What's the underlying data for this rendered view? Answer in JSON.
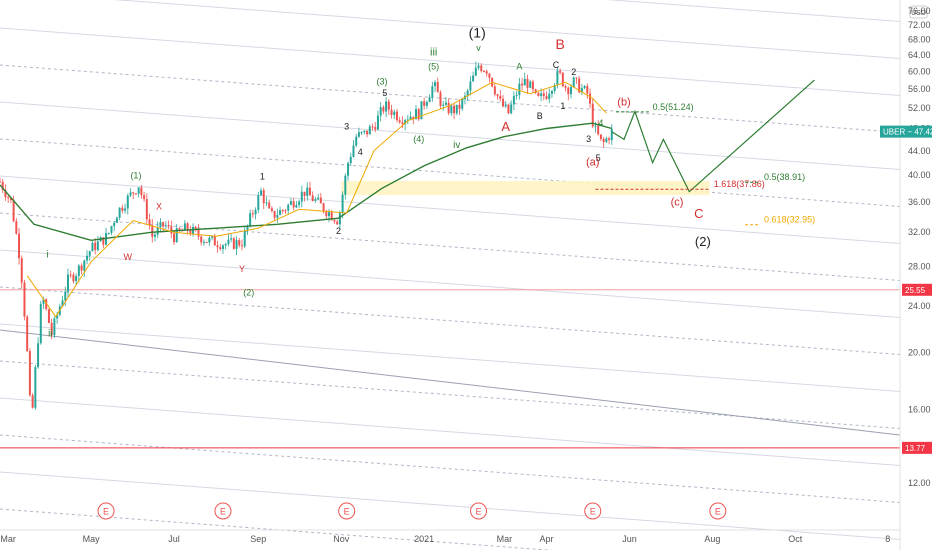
{
  "chart_data": {
    "type": "line",
    "title": "",
    "symbol": "UBER",
    "currency": "USD",
    "scale": "log",
    "ylim": [
      10.8,
      77.5
    ],
    "y_ticks": [
      "76.00",
      "72.00",
      "68.00",
      "64.00",
      "60.00",
      "56.00",
      "52.00",
      "48.00",
      "44.00",
      "40.00",
      "36.00",
      "32.00",
      "28.00",
      "24.00",
      "20.00",
      "16.00",
      "12.00"
    ],
    "x_ticks": [
      "Mar",
      "May",
      "Jul",
      "Sep",
      "Nov",
      "2021",
      "Mar",
      "Apr",
      "Jun",
      "Aug",
      "Oct",
      "8"
    ],
    "x_tick_dates": [
      "2020-03-01",
      "2020-05-01",
      "2020-07-01",
      "2020-09-01",
      "2020-11-01",
      "2021-01-01",
      "2021-03-01",
      "2021-04-01",
      "2021-06-01",
      "2021-08-01",
      "2021-10-01",
      "2021-12-08"
    ],
    "price_badges": [
      {
        "label": "UBER",
        "value": "47.42",
        "color": "#26a69a"
      },
      {
        "label": "",
        "value": "25.55",
        "color": "#f23645"
      },
      {
        "label": "",
        "value": "13.77",
        "color": "#f23645"
      }
    ],
    "horizontal_lines": [
      {
        "value": 25.55,
        "color": "#f4a09c"
      },
      {
        "value": 13.77,
        "color": "#f23645"
      }
    ],
    "fib_levels": [
      {
        "label": "0.5(51.24)",
        "value": 51.24,
        "color": "#2e7d32"
      },
      {
        "label": "1.618(37.86)",
        "value": 37.86,
        "color": "#d32f2f"
      },
      {
        "label": "0.5(38.91)",
        "value": 38.91,
        "color": "#2e7d32"
      },
      {
        "label": "0.618(32.95)",
        "value": 32.95,
        "color": "#f0a800"
      }
    ],
    "zone": {
      "from": 37.0,
      "to": 39.1,
      "color": "#fff3c0"
    },
    "earnings_marker": "E",
    "earnings_dates": [
      "2020-05-12",
      "2020-08-06",
      "2020-11-05",
      "2021-02-10",
      "2021-05-05",
      "2021-08-05"
    ],
    "price_path": [
      {
        "d": "2020-02-24",
        "v": 39.0
      },
      {
        "d": "2020-03-03",
        "v": 36.0
      },
      {
        "d": "2020-03-10",
        "v": 28.5
      },
      {
        "d": "2020-03-18",
        "v": 14.8
      },
      {
        "d": "2020-03-26",
        "v": 25.0
      },
      {
        "d": "2020-04-02",
        "v": 21.5
      },
      {
        "d": "2020-04-14",
        "v": 26.5
      },
      {
        "d": "2020-04-21",
        "v": 27.5
      },
      {
        "d": "2020-05-01",
        "v": 30.0
      },
      {
        "d": "2020-05-13",
        "v": 31.5
      },
      {
        "d": "2020-05-20",
        "v": 34.5
      },
      {
        "d": "2020-06-05",
        "v": 38.5
      },
      {
        "d": "2020-06-15",
        "v": 31.5
      },
      {
        "d": "2020-06-24",
        "v": 33.0
      },
      {
        "d": "2020-07-01",
        "v": 31.5
      },
      {
        "d": "2020-07-10",
        "v": 32.5
      },
      {
        "d": "2020-07-25",
        "v": 31.0
      },
      {
        "d": "2020-08-10",
        "v": 30.5
      },
      {
        "d": "2020-08-20",
        "v": 30.8
      },
      {
        "d": "2020-09-03",
        "v": 37.5
      },
      {
        "d": "2020-09-10",
        "v": 34.0
      },
      {
        "d": "2020-09-20",
        "v": 35.0
      },
      {
        "d": "2020-10-05",
        "v": 37.5
      },
      {
        "d": "2020-10-20",
        "v": 35.0
      },
      {
        "d": "2020-10-30",
        "v": 33.5
      },
      {
        "d": "2020-11-06",
        "v": 42.0
      },
      {
        "d": "2020-11-12",
        "v": 46.5
      },
      {
        "d": "2020-11-18",
        "v": 47.0
      },
      {
        "d": "2020-11-25",
        "v": 48.5
      },
      {
        "d": "2020-12-03",
        "v": 52.5
      },
      {
        "d": "2020-12-15",
        "v": 50.0
      },
      {
        "d": "2020-12-28",
        "v": 51.0
      },
      {
        "d": "2021-01-08",
        "v": 57.0
      },
      {
        "d": "2021-01-15",
        "v": 52.0
      },
      {
        "d": "2021-01-25",
        "v": 51.5
      },
      {
        "d": "2021-01-31",
        "v": 54.0
      },
      {
        "d": "2021-02-10",
        "v": 61.5
      },
      {
        "d": "2021-02-16",
        "v": 60.5
      },
      {
        "d": "2021-02-26",
        "v": 53.0
      },
      {
        "d": "2021-03-04",
        "v": 51.0
      },
      {
        "d": "2021-03-12",
        "v": 56.5
      },
      {
        "d": "2021-03-17",
        "v": 58.0
      },
      {
        "d": "2021-03-25",
        "v": 53.5
      },
      {
        "d": "2021-04-01",
        "v": 55.0
      },
      {
        "d": "2021-04-10",
        "v": 59.5
      },
      {
        "d": "2021-04-16",
        "v": 56.0
      },
      {
        "d": "2021-04-21",
        "v": 57.5
      },
      {
        "d": "2021-05-01",
        "v": 55.0
      },
      {
        "d": "2021-05-06",
        "v": 48.0
      },
      {
        "d": "2021-05-12",
        "v": 45.0
      },
      {
        "d": "2021-05-19",
        "v": 47.4
      }
    ],
    "ma_fast": [
      {
        "d": "2020-03-15",
        "v": 27.0
      },
      {
        "d": "2020-04-05",
        "v": 23.0
      },
      {
        "d": "2020-05-01",
        "v": 28.5
      },
      {
        "d": "2020-06-01",
        "v": 33.5
      },
      {
        "d": "2020-07-01",
        "v": 32.0
      },
      {
        "d": "2020-08-01",
        "v": 31.5
      },
      {
        "d": "2020-09-01",
        "v": 32.5
      },
      {
        "d": "2020-10-01",
        "v": 35.0
      },
      {
        "d": "2020-11-05",
        "v": 34.5
      },
      {
        "d": "2020-11-25",
        "v": 44.0
      },
      {
        "d": "2020-12-20",
        "v": 49.5
      },
      {
        "d": "2021-01-20",
        "v": 52.5
      },
      {
        "d": "2021-02-20",
        "v": 57.5
      },
      {
        "d": "2021-03-20",
        "v": 55.0
      },
      {
        "d": "2021-04-15",
        "v": 57.5
      },
      {
        "d": "2021-05-05",
        "v": 54.0
      },
      {
        "d": "2021-05-15",
        "v": 51.0
      }
    ],
    "ma_slow": [
      {
        "d": "2020-02-24",
        "v": 38.5
      },
      {
        "d": "2020-03-20",
        "v": 33.0
      },
      {
        "d": "2020-05-01",
        "v": 31.0
      },
      {
        "d": "2020-06-15",
        "v": 32.0
      },
      {
        "d": "2020-08-01",
        "v": 32.5
      },
      {
        "d": "2020-09-15",
        "v": 33.0
      },
      {
        "d": "2020-10-30",
        "v": 33.8
      },
      {
        "d": "2020-12-01",
        "v": 38.0
      },
      {
        "d": "2021-01-01",
        "v": 41.5
      },
      {
        "d": "2021-02-01",
        "v": 44.5
      },
      {
        "d": "2021-03-01",
        "v": 46.5
      },
      {
        "d": "2021-04-01",
        "v": 48.0
      },
      {
        "d": "2021-05-05",
        "v": 49.0
      },
      {
        "d": "2021-05-19",
        "v": 48.0
      }
    ],
    "projection": [
      {
        "d": "2021-05-19",
        "v": 47.4
      },
      {
        "d": "2021-05-28",
        "v": 46.0
      },
      {
        "d": "2021-06-05",
        "v": 51.3
      },
      {
        "d": "2021-06-18",
        "v": 42.0
      },
      {
        "d": "2021-06-26",
        "v": 46.0
      },
      {
        "d": "2021-07-15",
        "v": 37.5
      },
      {
        "d": "2021-10-15",
        "v": 58.0
      }
    ],
    "wave_labels": [
      {
        "text": "(1)",
        "d": "2021-02-09",
        "v": 68.5,
        "color": "#222222",
        "size": 14
      },
      {
        "text": "iii",
        "d": "2021-01-08",
        "v": 63.8,
        "color": "#2e7d32",
        "size": 11
      },
      {
        "text": "v",
        "d": "2021-02-10",
        "v": 65.0,
        "color": "#2e7d32",
        "size": 9
      },
      {
        "text": "B",
        "d": "2021-04-11",
        "v": 65.5,
        "color": "#d32f2f",
        "size": 14
      },
      {
        "text": "A",
        "d": "2021-03-12",
        "v": 60.5,
        "color": "#2e7d32",
        "size": 9
      },
      {
        "text": "C",
        "d": "2021-04-08",
        "v": 60.8,
        "color": "#222222",
        "size": 9
      },
      {
        "text": "2",
        "d": "2021-04-21",
        "v": 59.2,
        "color": "#222222",
        "size": 9
      },
      {
        "text": "(5)",
        "d": "2021-01-08",
        "v": 60.5,
        "color": "#2e7d32",
        "size": 9
      },
      {
        "text": "(3)",
        "d": "2020-12-01",
        "v": 57.0,
        "color": "#2e7d32",
        "size": 9
      },
      {
        "text": "5",
        "d": "2020-12-03",
        "v": 54.5,
        "color": "#222222",
        "size": 9
      },
      {
        "text": "1",
        "d": "2021-04-13",
        "v": 51.8,
        "color": "#222222",
        "size": 9
      },
      {
        "text": "B",
        "d": "2021-03-27",
        "v": 49.8,
        "color": "#222222",
        "size": 9
      },
      {
        "text": "A",
        "d": "2021-03-02",
        "v": 47.5,
        "color": "#d32f2f",
        "size": 13
      },
      {
        "text": "(b)",
        "d": "2021-05-28",
        "v": 52.5,
        "color": "#d32f2f",
        "size": 11
      },
      {
        "text": "3",
        "d": "2020-11-05",
        "v": 47.8,
        "color": "#222222",
        "size": 9
      },
      {
        "text": "(4)",
        "d": "2020-12-28",
        "v": 45.5,
        "color": "#2e7d32",
        "size": 9
      },
      {
        "text": "4",
        "d": "2021-05-11",
        "v": 48.5,
        "color": "#2e7d32",
        "size": 9
      },
      {
        "text": "3",
        "d": "2021-05-02",
        "v": 45.5,
        "color": "#222222",
        "size": 9
      },
      {
        "text": "iv",
        "d": "2021-01-25",
        "v": 44.5,
        "color": "#2e7d32",
        "size": 10
      },
      {
        "text": "4",
        "d": "2020-11-15",
        "v": 43.3,
        "color": "#222222",
        "size": 9
      },
      {
        "text": "5",
        "d": "2021-05-09",
        "v": 42.3,
        "color": "#222222",
        "size": 9
      },
      {
        "text": "(a)",
        "d": "2021-05-05",
        "v": 41.5,
        "color": "#d32f2f",
        "size": 11
      },
      {
        "text": "1",
        "d": "2020-09-04",
        "v": 39.3,
        "color": "#222222",
        "size": 9
      },
      {
        "text": "(1)",
        "d": "2020-06-03",
        "v": 39.5,
        "color": "#2e7d32",
        "size": 9
      },
      {
        "text": "(c)",
        "d": "2021-07-06",
        "v": 35.5,
        "color": "#d32f2f",
        "size": 11
      },
      {
        "text": "X",
        "d": "2020-06-20",
        "v": 35.0,
        "color": "#d32f2f",
        "size": 9
      },
      {
        "text": "C",
        "d": "2021-07-22",
        "v": 33.8,
        "color": "#d32f2f",
        "size": 13
      },
      {
        "text": "2",
        "d": "2020-10-30",
        "v": 31.8,
        "color": "#222222",
        "size": 9
      },
      {
        "text": "(2)",
        "d": "2021-07-25",
        "v": 30.3,
        "color": "#222222",
        "size": 13
      },
      {
        "text": "W",
        "d": "2020-05-28",
        "v": 28.7,
        "color": "#d32f2f",
        "size": 9
      },
      {
        "text": "i",
        "d": "2020-03-30",
        "v": 29.0,
        "color": "#2e7d32",
        "size": 10
      },
      {
        "text": "Y",
        "d": "2020-08-20",
        "v": 27.4,
        "color": "#d32f2f",
        "size": 9
      },
      {
        "text": "(2)",
        "d": "2020-08-25",
        "v": 25.0,
        "color": "#2e7d32",
        "size": 9
      },
      {
        "text": "ii",
        "d": "2020-04-01",
        "v": 21.3,
        "color": "#2e7d32",
        "size": 10
      }
    ]
  }
}
